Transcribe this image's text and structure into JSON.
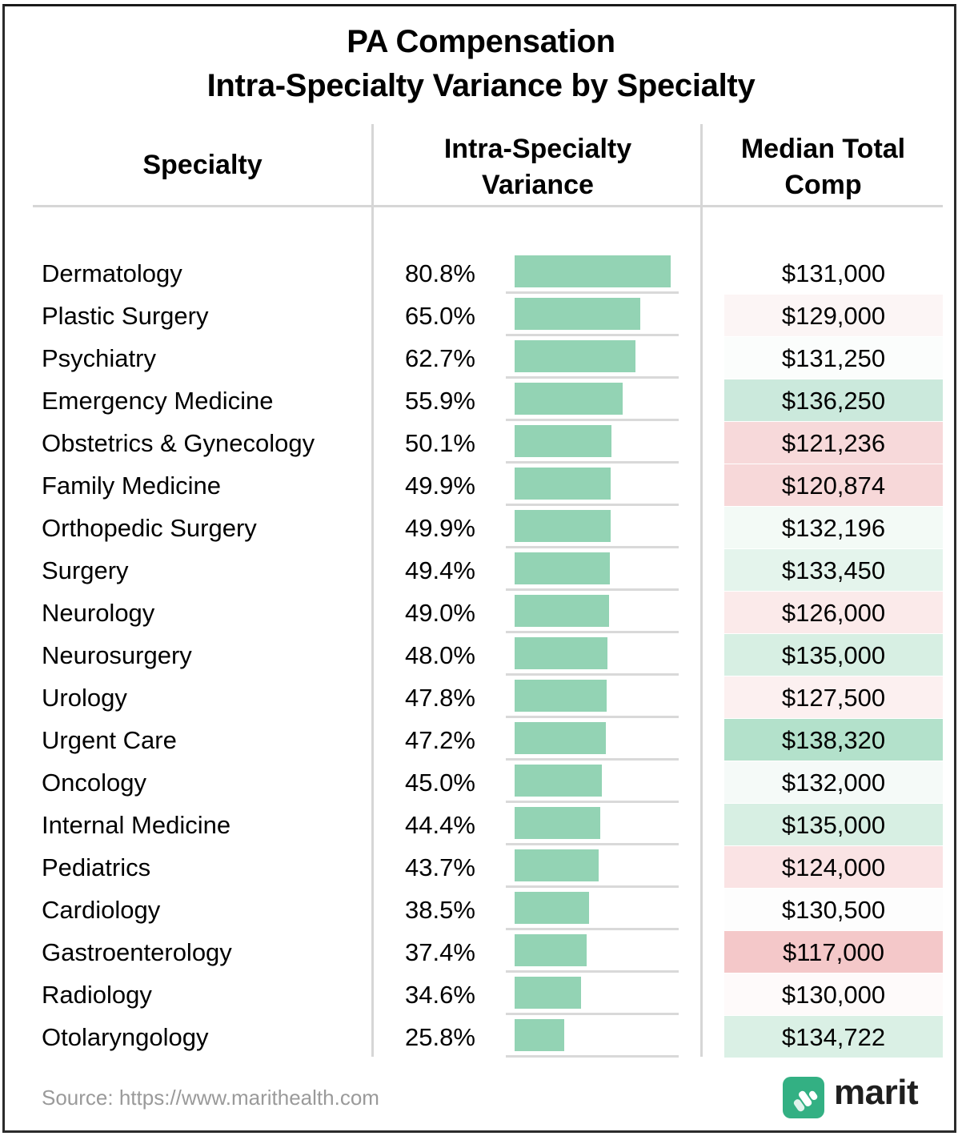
{
  "title_line1": "PA Compensation",
  "title_line2": "Intra-Specialty Variance by Specialty",
  "headers": {
    "specialty": "Specialty",
    "variance_line1": "Intra-Specialty",
    "variance_line2": "Variance",
    "comp_line1": "Median Total",
    "comp_line2": "Comp"
  },
  "colors": {
    "bar": "#93d3b4",
    "separator": "#d9d9d9",
    "logo": "#33b083"
  },
  "chart_data": {
    "type": "table",
    "title": "PA Compensation Intra-Specialty Variance by Specialty",
    "columns": [
      "Specialty",
      "Intra-Specialty Variance",
      "Median Total Comp"
    ],
    "rows": [
      {
        "specialty": "Dermatology",
        "variance": 80.8,
        "variance_label": "80.8%",
        "comp": 131000,
        "comp_label": "$131,000",
        "comp_bg": "#ffffff"
      },
      {
        "specialty": "Plastic Surgery",
        "variance": 65.0,
        "variance_label": "65.0%",
        "comp": 129000,
        "comp_label": "$129,000",
        "comp_bg": "#fcf5f5"
      },
      {
        "specialty": "Psychiatry",
        "variance": 62.7,
        "variance_label": "62.7%",
        "comp": 131250,
        "comp_label": "$131,250",
        "comp_bg": "#fbfdfc"
      },
      {
        "specialty": "Emergency Medicine",
        "variance": 55.9,
        "variance_label": "55.9%",
        "comp": 136250,
        "comp_label": "$136,250",
        "comp_bg": "#cbe9dc"
      },
      {
        "specialty": "Obstetrics & Gynecology",
        "variance": 50.1,
        "variance_label": "50.1%",
        "comp": 121236,
        "comp_label": "$121,236",
        "comp_bg": "#f7d9da"
      },
      {
        "specialty": "Family Medicine",
        "variance": 49.9,
        "variance_label": "49.9%",
        "comp": 120874,
        "comp_label": "$120,874",
        "comp_bg": "#f7d8d9"
      },
      {
        "specialty": "Orthopedic Surgery",
        "variance": 49.9,
        "variance_label": "49.9%",
        "comp": 132196,
        "comp_label": "$132,196",
        "comp_bg": "#f3faf6"
      },
      {
        "specialty": "Surgery",
        "variance": 49.4,
        "variance_label": "49.4%",
        "comp": 133450,
        "comp_label": "$133,450",
        "comp_bg": "#e4f4ec"
      },
      {
        "specialty": "Neurology",
        "variance": 49.0,
        "variance_label": "49.0%",
        "comp": 126000,
        "comp_label": "$126,000",
        "comp_bg": "#fbeaea"
      },
      {
        "specialty": "Neurosurgery",
        "variance": 48.0,
        "variance_label": "48.0%",
        "comp": 135000,
        "comp_label": "$135,000",
        "comp_bg": "#d7efe3"
      },
      {
        "specialty": "Urology",
        "variance": 47.8,
        "variance_label": "47.8%",
        "comp": 127500,
        "comp_label": "$127,500",
        "comp_bg": "#fcf0f0"
      },
      {
        "specialty": "Urgent Care",
        "variance": 47.2,
        "variance_label": "47.2%",
        "comp": 138320,
        "comp_label": "$138,320",
        "comp_bg": "#b3e1cb"
      },
      {
        "specialty": "Oncology",
        "variance": 45.0,
        "variance_label": "45.0%",
        "comp": 132000,
        "comp_label": "$132,000",
        "comp_bg": "#f5faf8"
      },
      {
        "specialty": "Internal Medicine",
        "variance": 44.4,
        "variance_label": "44.4%",
        "comp": 135000,
        "comp_label": "$135,000",
        "comp_bg": "#d7efe3"
      },
      {
        "specialty": "Pediatrics",
        "variance": 43.7,
        "variance_label": "43.7%",
        "comp": 124000,
        "comp_label": "$124,000",
        "comp_bg": "#fae3e4"
      },
      {
        "specialty": "Cardiology",
        "variance": 38.5,
        "variance_label": "38.5%",
        "comp": 130500,
        "comp_label": "$130,500",
        "comp_bg": "#fdfdfd"
      },
      {
        "specialty": "Gastroenterology",
        "variance": 37.4,
        "variance_label": "37.4%",
        "comp": 117000,
        "comp_label": "$117,000",
        "comp_bg": "#f4c8c9"
      },
      {
        "specialty": "Radiology",
        "variance": 34.6,
        "variance_label": "34.6%",
        "comp": 130000,
        "comp_label": "$130,000",
        "comp_bg": "#fefafa"
      },
      {
        "specialty": "Otolaryngology",
        "variance": 25.8,
        "variance_label": "25.8%",
        "comp": 134722,
        "comp_label": "$134,722",
        "comp_bg": "#daf0e5"
      }
    ]
  },
  "footer": {
    "source": "Source: https://www.marithealth.com",
    "brand": "marit",
    "logo_icon": "marit-logo-icon"
  }
}
